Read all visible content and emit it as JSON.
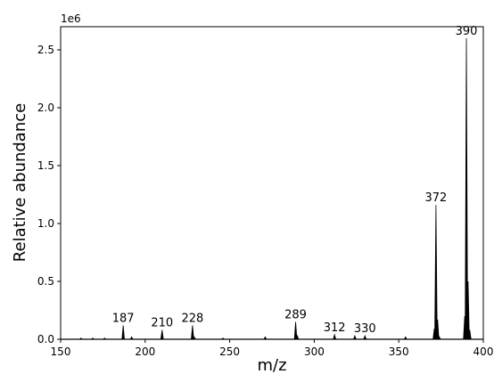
{
  "chart_data": {
    "type": "line",
    "xlabel": "m/z",
    "ylabel": "Relative abundance",
    "y_offset_label": "1e6",
    "xlim": [
      150,
      400
    ],
    "ylim": [
      0,
      2.7
    ],
    "x_ticks": [
      150,
      200,
      250,
      300,
      350,
      400
    ],
    "y_ticks": [
      0.0,
      0.5,
      1.0,
      1.5,
      2.0,
      2.5
    ],
    "x_tick_labels": [
      "150",
      "200",
      "250",
      "300",
      "350",
      "400"
    ],
    "y_tick_labels": [
      "0.0",
      "0.5",
      "1.0",
      "1.5",
      "2.0",
      "2.5"
    ],
    "grid": false,
    "line_color": "#000000",
    "series": [
      {
        "peaks": [
          {
            "mz": 162,
            "abundance": 0.01
          },
          {
            "mz": 169,
            "abundance": 0.01
          },
          {
            "mz": 176,
            "abundance": 0.01
          },
          {
            "mz": 187,
            "abundance": 0.12
          },
          {
            "mz": 192,
            "abundance": 0.02
          },
          {
            "mz": 210,
            "abundance": 0.08
          },
          {
            "mz": 228,
            "abundance": 0.12
          },
          {
            "mz": 229,
            "abundance": 0.02
          },
          {
            "mz": 246,
            "abundance": 0.01
          },
          {
            "mz": 271,
            "abundance": 0.02
          },
          {
            "mz": 289,
            "abundance": 0.15
          },
          {
            "mz": 290,
            "abundance": 0.03
          },
          {
            "mz": 312,
            "abundance": 0.04
          },
          {
            "mz": 324,
            "abundance": 0.03
          },
          {
            "mz": 330,
            "abundance": 0.03
          },
          {
            "mz": 354,
            "abundance": 0.02
          },
          {
            "mz": 371,
            "abundance": 0.09
          },
          {
            "mz": 372,
            "abundance": 1.16
          },
          {
            "mz": 373,
            "abundance": 0.17
          },
          {
            "mz": 374,
            "abundance": 0.02
          },
          {
            "mz": 389,
            "abundance": 0.2
          },
          {
            "mz": 390,
            "abundance": 2.6
          },
          {
            "mz": 391,
            "abundance": 0.5
          },
          {
            "mz": 392,
            "abundance": 0.08
          }
        ]
      }
    ],
    "peak_annotations": [
      {
        "label": "187",
        "mz": 187,
        "abundance": 0.12
      },
      {
        "label": "210",
        "mz": 210,
        "abundance": 0.08
      },
      {
        "label": "228",
        "mz": 228,
        "abundance": 0.12
      },
      {
        "label": "289",
        "mz": 289,
        "abundance": 0.15
      },
      {
        "label": "312",
        "mz": 312,
        "abundance": 0.04
      },
      {
        "label": "330",
        "mz": 330,
        "abundance": 0.03
      },
      {
        "label": "372",
        "mz": 372,
        "abundance": 1.16
      },
      {
        "label": "390",
        "mz": 390,
        "abundance": 2.6
      }
    ]
  }
}
